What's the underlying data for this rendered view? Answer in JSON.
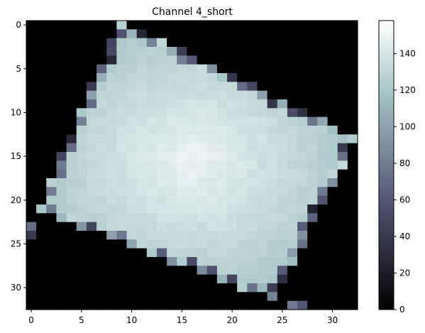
{
  "chart_data": {
    "type": "heatmap",
    "title": "Channel 4_short",
    "xlabel": "",
    "ylabel": "",
    "grid": false,
    "colormap": "bone",
    "rows": 33,
    "cols": 33,
    "xticks": [
      0,
      5,
      10,
      15,
      20,
      25,
      30
    ],
    "yticks": [
      0,
      5,
      10,
      15,
      20,
      25,
      30
    ],
    "colorbar": {
      "range": [
        0,
        158
      ],
      "ticks": [
        0,
        20,
        40,
        60,
        80,
        100,
        120,
        140
      ]
    },
    "shape": {
      "corners": [
        {
          "label": "top",
          "x": 9,
          "y": 0
        },
        {
          "label": "right",
          "x": 32,
          "y": 13
        },
        {
          "label": "bottom",
          "x": 24,
          "y": 31
        },
        {
          "label": "left",
          "x": 1,
          "y": 21
        }
      ],
      "interior_value_range": [
        122,
        150
      ],
      "edge_value_range": [
        20,
        100
      ]
    }
  }
}
